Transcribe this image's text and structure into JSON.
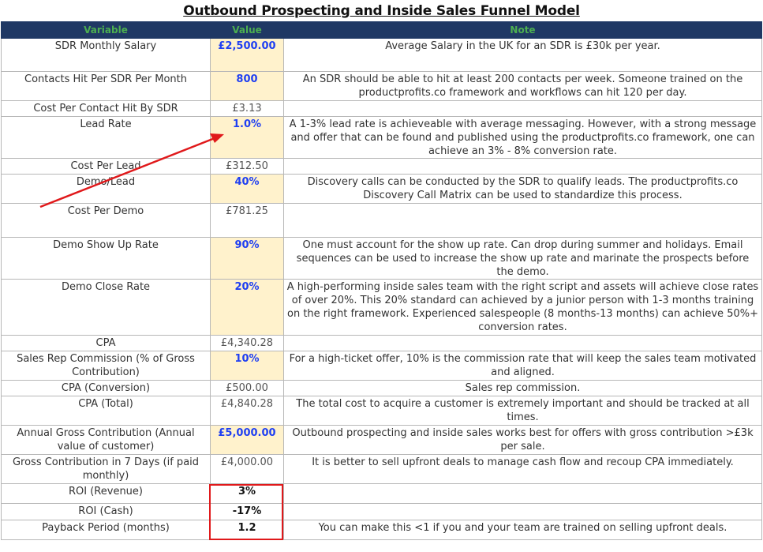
{
  "title": "Outbound Prospecting and Inside Sales Funnel Model",
  "headers": {
    "variable": "Variable",
    "value": "Value",
    "note": "Note"
  },
  "rows": [
    {
      "variable": "SDR Monthly Salary",
      "value": "£2,500.00",
      "note": "Average Salary in the UK for an SDR is £30k per year."
    },
    {
      "variable": "Contacts Hit Per SDR Per Month",
      "value": "800",
      "note": "An SDR should be able to hit at least 200 contacts per week. Someone trained on the productprofits.co framework and workflows can hit 120 per day."
    },
    {
      "variable": "Cost Per Contact Hit By SDR",
      "value": "£3.13",
      "note": ""
    },
    {
      "variable": "Lead Rate",
      "value": "1.0%",
      "note": "A 1-3% lead rate is achieveable with average messaging. However, with a strong message and offer that can be found and published using the productprofits.co framework, one can achieve an 3% - 8% conversion rate."
    },
    {
      "variable": "Cost Per Lead",
      "value": "£312.50",
      "note": ""
    },
    {
      "variable": "Demo/Lead",
      "value": "40%",
      "note": "Discovery calls can be conducted by the SDR to qualify leads. The productprofits.co Discovery Call Matrix can be used to standardize this process."
    },
    {
      "variable": "Cost Per Demo",
      "value": "£781.25",
      "note": ""
    },
    {
      "variable": "Demo Show Up Rate",
      "value": "90%",
      "note": "One must account for the show up rate. Can drop during summer and holidays. Email sequences can be used to increase the show up rate and marinate the prospects before the demo."
    },
    {
      "variable": "Demo Close Rate",
      "value": "20%",
      "note": "A high-performing inside sales team with the right script and assets will achieve close rates of over 20%. This 20% standard can achieved by a junior person with 1-3 months training on the right framework. Experienced salespeople (8 months-13 months) can achieve 50%+ conversion rates."
    },
    {
      "variable": "CPA",
      "value": "£4,340.28",
      "note": ""
    },
    {
      "variable": "Sales Rep Commission (% of Gross Contribution)",
      "value": "10%",
      "note": "For a high-ticket offer, 10% is the commission rate that will keep the sales team motivated and aligned."
    },
    {
      "variable": "CPA (Conversion)",
      "value": "£500.00",
      "note": "Sales rep commission."
    },
    {
      "variable": "CPA (Total)",
      "value": "£4,840.28",
      "note": "The total cost to acquire a customer is extremely important and should be tracked at all times."
    },
    {
      "variable": "Annual Gross Contribution (Annual value of customer)",
      "value": "£5,000.00",
      "note": "Outbound prospecting and inside sales works best for offers with gross contribution >£3k per sale."
    },
    {
      "variable": "Gross Contribution in 7 Days (if paid monthly)",
      "value": "£4,000.00",
      "note": "It is better to sell upfront deals to manage cash flow and recoup CPA immediately."
    },
    {
      "variable": "ROI (Revenue)",
      "value": "3%",
      "note": ""
    },
    {
      "variable": "ROI (Cash)",
      "value": "-17%",
      "note": ""
    },
    {
      "variable": "Payback Period (months)",
      "value": "1.2",
      "note": "You can make this <1 if you and your team are trained on selling upfront deals."
    }
  ],
  "colors": {
    "header_bg": "#1f3864",
    "header_text": "#4caf50",
    "input_bg": "#fff2cc",
    "input_text": "#1f3ff2",
    "highlight": "#e0191b"
  }
}
